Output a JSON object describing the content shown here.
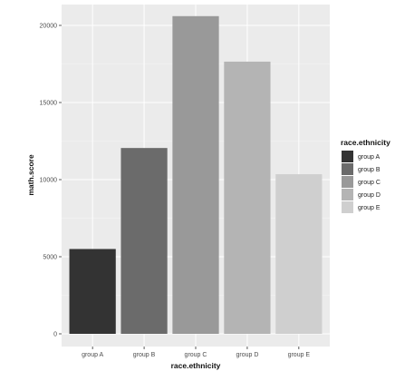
{
  "chart_data": {
    "type": "bar",
    "categories": [
      "group A",
      "group B",
      "group C",
      "group D",
      "group E"
    ],
    "values": [
      5500,
      12050,
      20600,
      17650,
      10350
    ],
    "xlabel": "race.ethnicity",
    "ylabel": "math.score",
    "ylim": [
      0,
      21000
    ],
    "yticks": [
      0,
      5000,
      10000,
      15000,
      20000
    ],
    "ytick_labels": [
      "0",
      "5000",
      "10000",
      "15000",
      "20000"
    ],
    "grid": true,
    "legend": {
      "title": "race.ethnicity",
      "position": "right",
      "entries": [
        "group A",
        "group B",
        "group C",
        "group D",
        "group E"
      ]
    },
    "colors": [
      "#333333",
      "#6b6b6b",
      "#999999",
      "#b4b4b4",
      "#cfcfcf"
    ],
    "panel_background": "#ebebeb",
    "grid_color": "#ffffff"
  }
}
